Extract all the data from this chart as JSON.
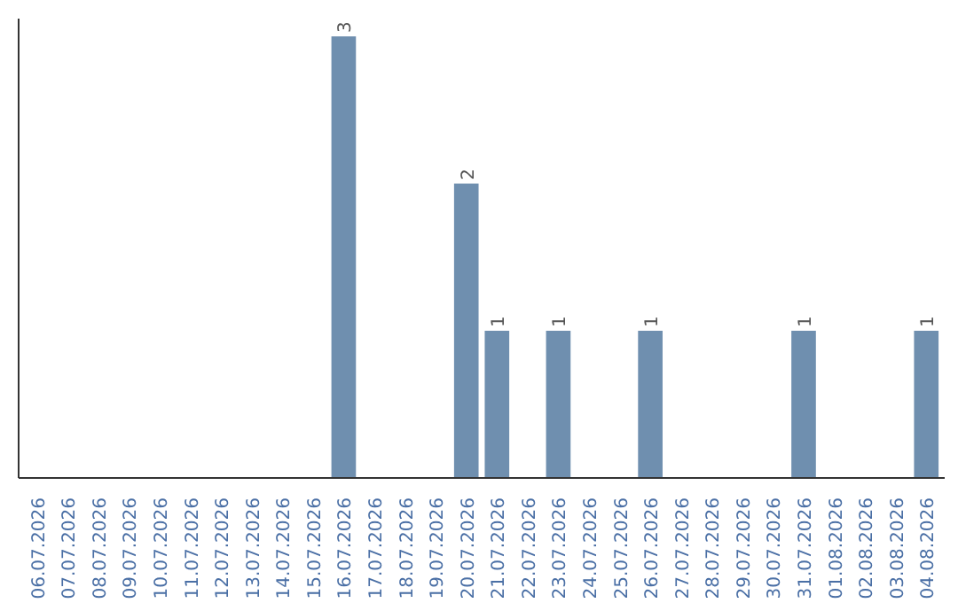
{
  "chart_data": {
    "type": "bar",
    "categories": [
      "06.07.2026",
      "07.07.2026",
      "08.07.2026",
      "09.07.2026",
      "10.07.2026",
      "11.07.2026",
      "12.07.2026",
      "13.07.2026",
      "14.07.2026",
      "15.07.2026",
      "16.07.2026",
      "17.07.2026",
      "18.07.2026",
      "19.07.2026",
      "20.07.2026",
      "21.07.2026",
      "22.07.2026",
      "23.07.2026",
      "24.07.2026",
      "25.07.2026",
      "26.07.2026",
      "27.07.2026",
      "28.07.2026",
      "29.07.2026",
      "30.07.2026",
      "31.07.2026",
      "01.08.2026",
      "02.08.2026",
      "03.08.2026",
      "04.08.2026"
    ],
    "values": [
      0,
      0,
      0,
      0,
      0,
      0,
      0,
      0,
      0,
      0,
      3,
      0,
      0,
      0,
      2,
      1,
      0,
      1,
      0,
      0,
      1,
      0,
      0,
      0,
      0,
      1,
      0,
      0,
      0,
      1
    ],
    "value_labels": [
      null,
      null,
      null,
      null,
      null,
      null,
      null,
      null,
      null,
      null,
      "3",
      null,
      null,
      null,
      "2",
      "1",
      null,
      "1",
      null,
      null,
      "1",
      null,
      null,
      null,
      null,
      "1",
      null,
      null,
      null,
      "1"
    ],
    "color": "#6f8faf",
    "ylim": [
      0,
      3.12
    ],
    "grid": false
  }
}
